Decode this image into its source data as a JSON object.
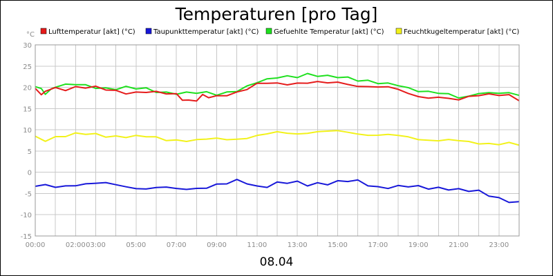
{
  "chart_data": {
    "type": "line",
    "title": "Temperaturen [pro Tag]",
    "unit_label": "°C",
    "xlabel": "08.04",
    "ylim": [
      -15,
      30
    ],
    "yticks": [
      30,
      25,
      20,
      15,
      10,
      5,
      0,
      -5,
      -10,
      -15
    ],
    "xlim": [
      0,
      24
    ],
    "xticks": [
      {
        "hour": 0,
        "label": "00:00"
      },
      {
        "hour": 2,
        "label": "02:00"
      },
      {
        "hour": 3,
        "label": "03:00"
      },
      {
        "hour": 5,
        "label": "05:00"
      },
      {
        "hour": 7,
        "label": "07:00"
      },
      {
        "hour": 9,
        "label": "09:00"
      },
      {
        "hour": 11,
        "label": "11:00"
      },
      {
        "hour": 13,
        "label": "13:00"
      },
      {
        "hour": 15,
        "label": "15:00"
      },
      {
        "hour": 17,
        "label": "17:00"
      },
      {
        "hour": 19,
        "label": "19:00"
      },
      {
        "hour": 21,
        "label": "21:00"
      },
      {
        "hour": 23,
        "label": "23:00"
      }
    ],
    "series": [
      {
        "name": "Lufttemperatur [akt] (°C)",
        "color": "#e51b1b",
        "x": [
          0,
          0.3,
          0.5,
          0.8,
          1,
          1.5,
          2,
          2.5,
          3,
          3.5,
          4,
          4.5,
          5,
          5.5,
          6,
          6.5,
          7,
          7.3,
          7.6,
          8,
          8.3,
          8.6,
          9,
          9.5,
          10,
          10.5,
          11,
          11.5,
          12,
          12.5,
          13,
          13.5,
          14,
          14.5,
          15,
          15.5,
          16,
          16.5,
          17,
          17.5,
          18,
          18.5,
          19,
          19.5,
          20,
          20.5,
          21,
          21.5,
          22,
          22.5,
          23,
          23.5,
          24
        ],
        "values": [
          19.5,
          18.2,
          18.5,
          19.8,
          20,
          19.8,
          20,
          19.8,
          19.7,
          19.5,
          19.3,
          19,
          18.8,
          18.8,
          18.5,
          18.5,
          18.5,
          17.5,
          17.0,
          16.8,
          17.8,
          17.5,
          18,
          18.5,
          19,
          19.5,
          20.5,
          20.8,
          21,
          21,
          21.2,
          21,
          21,
          20.8,
          21.2,
          21,
          20.5,
          20.2,
          19.8,
          19.8,
          19.5,
          18.8,
          18.2,
          17.5,
          17.5,
          17,
          17,
          18,
          18.5,
          18.5,
          18.0,
          17.8,
          16.8
        ]
      },
      {
        "name": "Taupunkttemperatur [akt] (°C)",
        "color": "#1717d9",
        "x": [
          0,
          0.5,
          1,
          1.5,
          2,
          2.5,
          3,
          3.5,
          4,
          4.5,
          5,
          5.5,
          6,
          6.5,
          7,
          7.5,
          8,
          8.5,
          9,
          9.5,
          10,
          10.5,
          11,
          11.5,
          12,
          12.5,
          13,
          13.5,
          14,
          14.5,
          15,
          15.5,
          16,
          16.5,
          17,
          17.5,
          18,
          18.5,
          19,
          19.5,
          20,
          20.5,
          21,
          21.5,
          22,
          22.5,
          23,
          23.5,
          24
        ],
        "values": [
          -3.5,
          -3.3,
          -3.5,
          -3.0,
          -2.8,
          -2.7,
          -2.8,
          -2.8,
          -3.0,
          -3.2,
          -3.5,
          -3.8,
          -3.8,
          -3.8,
          -4.0,
          -3.8,
          -3.5,
          -3.5,
          -3.0,
          -3.0,
          -2.0,
          -2.5,
          -3.0,
          -3.2,
          -2.5,
          -2.8,
          -2.5,
          -3.0,
          -2.3,
          -2.5,
          -2.2,
          -2.3,
          -2.3,
          -3.0,
          -3.3,
          -3.3,
          -3.3,
          -3.5,
          -3.7,
          -3.8,
          -3.5,
          -3.6,
          -4.0,
          -4.5,
          -4.8,
          -5.5,
          -6.0,
          -6.5,
          -7.0
        ]
      },
      {
        "name": "Gefuehlte Temperatur [akt] (°C)",
        "color": "#1ee01e",
        "x": [
          0,
          0.3,
          0.5,
          0.8,
          1,
          1.5,
          2,
          2.5,
          3,
          3.5,
          4,
          4.5,
          5,
          5.5,
          6,
          6.5,
          7,
          7.5,
          8,
          8.5,
          9,
          9.5,
          10,
          10.5,
          11,
          11.5,
          12,
          12.5,
          13,
          13.5,
          14,
          14.5,
          15,
          15.5,
          16,
          16.5,
          17,
          17.5,
          18,
          18.5,
          19,
          19.5,
          20,
          20.5,
          21,
          21.5,
          22,
          22.5,
          23,
          23.5,
          24
        ],
        "values": [
          20,
          19.5,
          18.8,
          19.8,
          20.3,
          20.3,
          20.5,
          20.3,
          20.2,
          20,
          19.8,
          19.8,
          19.5,
          19.5,
          19.2,
          19,
          18.8,
          18.5,
          18.5,
          18.5,
          18.5,
          19,
          19.5,
          20,
          21,
          21.5,
          22.5,
          22.8,
          22.8,
          23,
          22.5,
          22.3,
          22.5,
          22.5,
          22,
          21.5,
          20.8,
          20.5,
          20.5,
          20,
          19.5,
          19,
          18.5,
          18,
          17.5,
          18,
          19,
          18.8,
          18.5,
          18.3,
          18.0
        ]
      },
      {
        "name": "Feuchtkugeltemperatur [akt] (°C)",
        "color": "#f2f21a",
        "x": [
          0,
          0.5,
          1,
          1.5,
          2,
          2.5,
          3,
          3.5,
          4,
          4.5,
          5,
          5.5,
          6,
          6.5,
          7,
          7.5,
          8,
          8.5,
          9,
          9.5,
          10,
          10.5,
          11,
          11.5,
          12,
          12.5,
          13,
          13.5,
          14,
          14.5,
          15,
          15.5,
          16,
          16.5,
          17,
          17.5,
          18,
          18.5,
          19,
          19.5,
          20,
          20.5,
          21,
          21.5,
          22,
          22.5,
          23,
          23.5,
          24
        ],
        "values": [
          8.2,
          7.8,
          8.5,
          8.7,
          8.8,
          8.8,
          8.8,
          8.7,
          8.7,
          8.5,
          8.3,
          8.2,
          8.0,
          7.8,
          7.8,
          7.6,
          7.4,
          7.6,
          7.7,
          7.9,
          8.0,
          8.3,
          8.5,
          8.8,
          9.2,
          9.3,
          9.3,
          9.5,
          9.5,
          9.4,
          9.5,
          9.4,
          9.3,
          9.0,
          8.8,
          8.6,
          8.4,
          8.2,
          8.0,
          7.8,
          7.6,
          7.4,
          7.2,
          7.0,
          7.0,
          7.0,
          6.8,
          6.7,
          6.2
        ]
      }
    ]
  }
}
